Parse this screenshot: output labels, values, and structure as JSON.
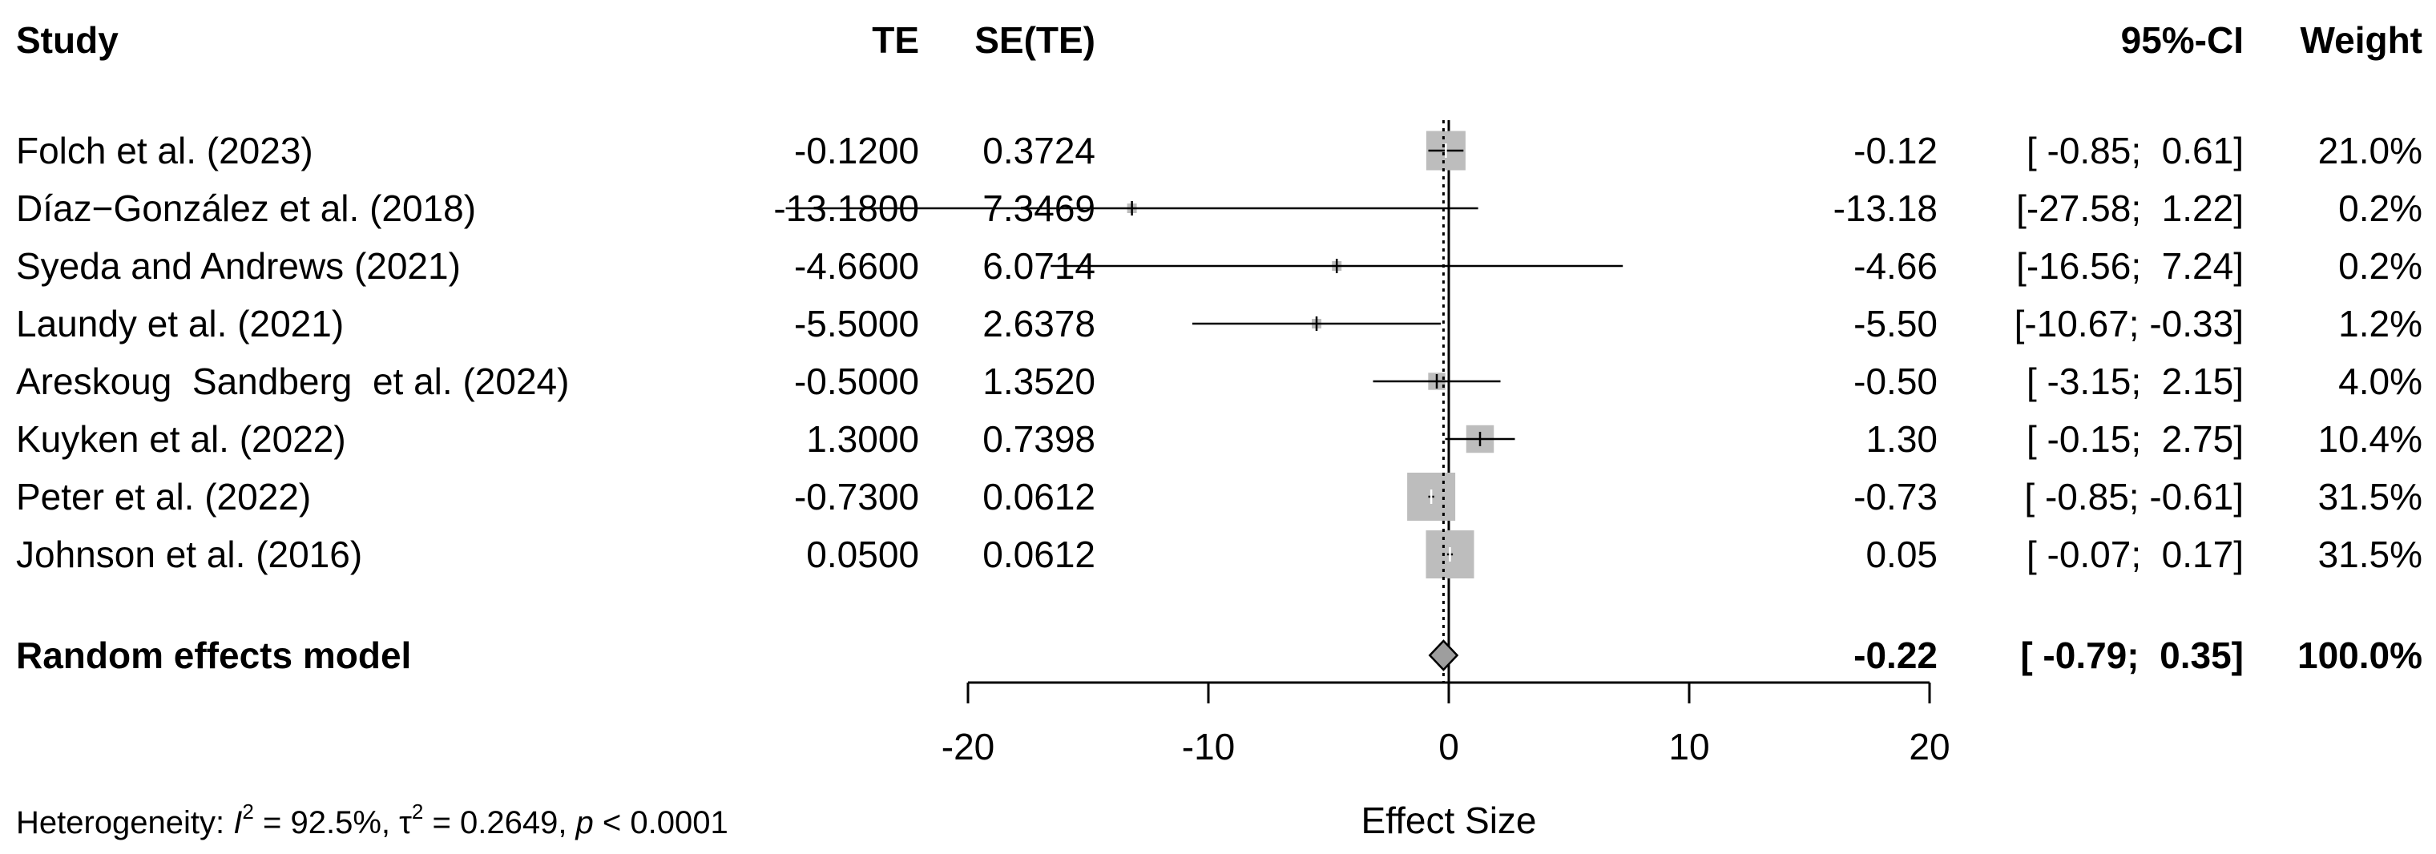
{
  "headers": {
    "study": "Study",
    "te": "TE",
    "se": "SE(TE)",
    "ci": "95%-CI",
    "weight": "Weight"
  },
  "studies": [
    {
      "study": "Folch et al. (2023)",
      "te_text": "-0.1200",
      "se_text": "0.3724",
      "est_text": "-0.12",
      "ci_text": "[ -0.85;  0.61]",
      "weight_text": "21.0%",
      "est": -0.12,
      "lower": -0.85,
      "upper": 0.61,
      "weight": 21.0
    },
    {
      "study": "Díaz−González et al. (2018)",
      "te_text": "-13.1800",
      "se_text": "7.3469",
      "est_text": "-13.18",
      "ci_text": "[-27.58;  1.22]",
      "weight_text": "0.2%",
      "est": -13.18,
      "lower": -27.58,
      "upper": 1.22,
      "weight": 0.2
    },
    {
      "study": "Syeda and Andrews (2021)",
      "te_text": "-4.6600",
      "se_text": "6.0714",
      "est_text": "-4.66",
      "ci_text": "[-16.56;  7.24]",
      "weight_text": "0.2%",
      "est": -4.66,
      "lower": -16.56,
      "upper": 7.24,
      "weight": 0.2
    },
    {
      "study": "Laundy et al. (2021)",
      "te_text": "-5.5000",
      "se_text": "2.6378",
      "est_text": "-5.50",
      "ci_text": "[-10.67; -0.33]",
      "weight_text": "1.2%",
      "est": -5.5,
      "lower": -10.67,
      "upper": -0.33,
      "weight": 1.2
    },
    {
      "study": "Areskoug  Sandberg  et al. (2024)",
      "te_text": "-0.5000",
      "se_text": "1.3520",
      "est_text": "-0.50",
      "ci_text": "[ -3.15;  2.15]",
      "weight_text": "4.0%",
      "est": -0.5,
      "lower": -3.15,
      "upper": 2.15,
      "weight": 4.0
    },
    {
      "study": "Kuyken et al. (2022)",
      "te_text": "1.3000",
      "se_text": "0.7398",
      "est_text": "1.30",
      "ci_text": "[ -0.15;  2.75]",
      "weight_text": "10.4%",
      "est": 1.3,
      "lower": -0.15,
      "upper": 2.75,
      "weight": 10.4
    },
    {
      "study": "Peter et al. (2022)",
      "te_text": "-0.7300",
      "se_text": "0.0612",
      "est_text": "-0.73",
      "ci_text": "[ -0.85; -0.61]",
      "weight_text": "31.5%",
      "est": -0.73,
      "lower": -0.85,
      "upper": -0.61,
      "weight": 31.5
    },
    {
      "study": "Johnson et al. (2016)",
      "te_text": "0.0500",
      "se_text": "0.0612",
      "est_text": "0.05",
      "ci_text": "[ -0.07;  0.17]",
      "weight_text": "31.5%",
      "est": 0.05,
      "lower": -0.07,
      "upper": 0.17,
      "weight": 31.5
    }
  ],
  "pooled": {
    "label": "Random effects model",
    "est_text": "-0.22",
    "ci_text": "[ -0.79;  0.35]",
    "weight_text": "100.0%",
    "est": -0.22,
    "lower": -0.79,
    "upper": 0.35
  },
  "heterogeneity": {
    "prefix": "Heterogeneity: ",
    "i2_symbol": "I",
    "i2_sup": "2",
    "i2_value": " = 92.5%, ",
    "tau_symbol": "τ",
    "tau_sup": "2",
    "tau_value": " = 0.2649, ",
    "p_symbol": "p",
    "p_value": " < 0.0001"
  },
  "chart_data": {
    "type": "forest",
    "xlabel": "Effect Size",
    "xlim": [
      -20,
      20
    ],
    "xticks": [
      -20,
      -10,
      0,
      10,
      20
    ],
    "tick_labels": [
      "-20",
      "-10",
      "0",
      "10",
      "20"
    ],
    "reference_line": 0,
    "pooled_line": -0.22,
    "colors": {
      "square": "#bdbdbd",
      "line": "#000000",
      "diamond": "#9e9e9e"
    }
  }
}
